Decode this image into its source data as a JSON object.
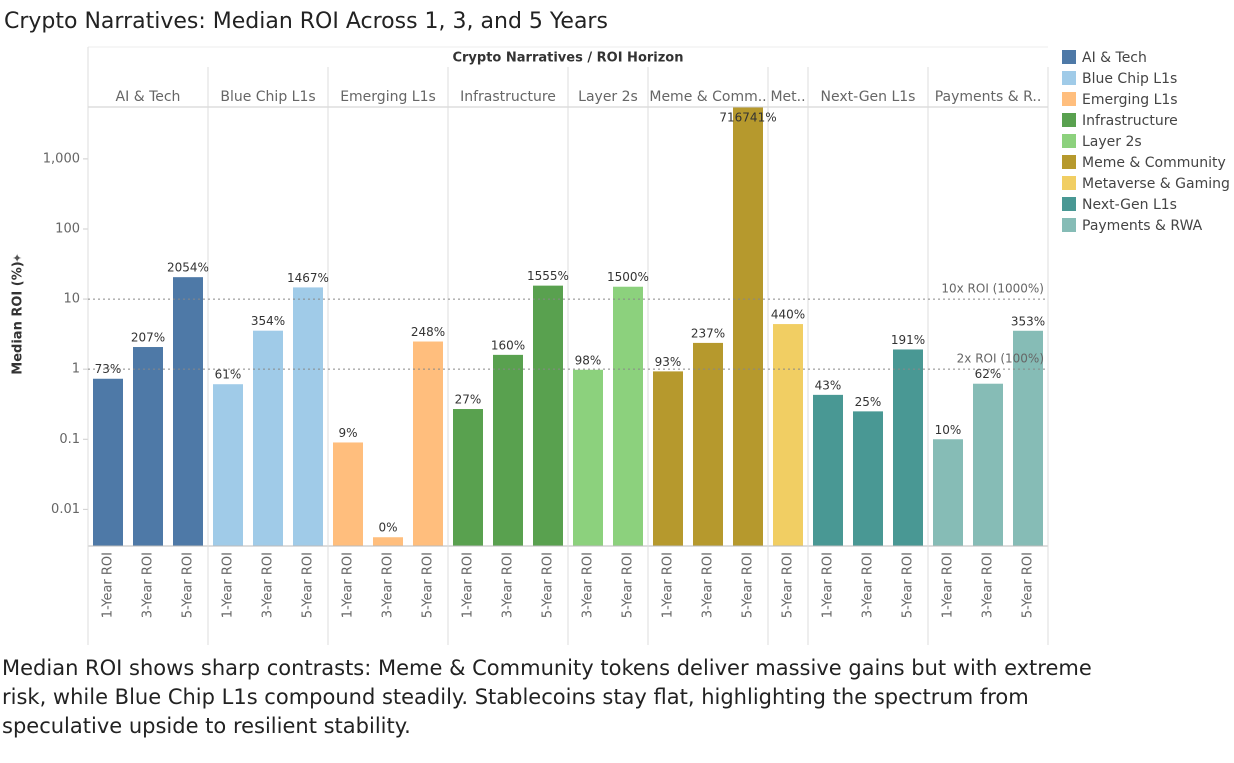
{
  "chart_data": {
    "type": "grouped_bar",
    "title": "Crypto Narratives: Median ROI Across 1, 3, and 5 Years",
    "header": "Crypto Narratives / ROI Horizon",
    "y_label": "Median ROI (%)",
    "log_scale": true,
    "ylim": [
      0.003,
      5500
    ],
    "yticks": [
      0.01,
      0.1,
      1,
      10,
      100,
      {
        "value": 1000,
        "label": "1,000"
      }
    ],
    "reference_lines": [
      {
        "value": 10,
        "label": "10x ROI (1000%)"
      },
      {
        "value": 1,
        "label": "2x ROI (100%)"
      }
    ],
    "groups": [
      {
        "name": "AI & Tech",
        "header": "AI & Tech",
        "color": "#4e79a7",
        "categories": [
          "1-Year ROI",
          "3-Year ROI",
          "5-Year ROI"
        ],
        "values": [
          0.73,
          2.07,
          20.54
        ],
        "value_labels": [
          "73%",
          "207%",
          "2054%"
        ]
      },
      {
        "name": "Blue Chip L1s",
        "header": "Blue Chip L1s",
        "color": "#a0cbe8",
        "categories": [
          "1-Year ROI",
          "3-Year ROI",
          "5-Year ROI"
        ],
        "values": [
          0.61,
          3.54,
          14.67
        ],
        "value_labels": [
          "61%",
          "354%",
          "1467%"
        ]
      },
      {
        "name": "Emerging L1s",
        "header": "Emerging L1s",
        "color": "#ffbe7d",
        "categories": [
          "1-Year ROI",
          "3-Year ROI",
          "5-Year ROI"
        ],
        "values": [
          0.09,
          0.004,
          2.48
        ],
        "value_labels": [
          "9%",
          "0%",
          "248%"
        ]
      },
      {
        "name": "Infrastructure",
        "header": "Infrastructure",
        "color": "#59a14f",
        "categories": [
          "1-Year ROI",
          "3-Year ROI",
          "5-Year ROI"
        ],
        "values": [
          0.27,
          1.6,
          15.55
        ],
        "value_labels": [
          "27%",
          "160%",
          "1555%"
        ]
      },
      {
        "name": "Layer 2s",
        "header": "Layer 2s",
        "color": "#8cd17d",
        "categories": [
          "3-Year ROI",
          "5-Year ROI"
        ],
        "values": [
          0.98,
          15.0
        ],
        "value_labels": [
          "98%",
          "1500%"
        ]
      },
      {
        "name": "Meme & Community",
        "header": "Meme & Comm..",
        "color": "#b6992d",
        "categories": [
          "1-Year ROI",
          "3-Year ROI",
          "5-Year ROI"
        ],
        "values": [
          0.93,
          2.37,
          7167.41
        ],
        "value_labels": [
          "93%",
          "237%",
          "716741%"
        ]
      },
      {
        "name": "Metaverse & Gaming",
        "header": "Met..",
        "color": "#f1ce63",
        "categories": [
          "5-Year ROI"
        ],
        "values": [
          4.4
        ],
        "value_labels": [
          "440%"
        ]
      },
      {
        "name": "Next-Gen L1s",
        "header": "Next-Gen L1s",
        "color": "#499894",
        "categories": [
          "1-Year ROI",
          "3-Year ROI",
          "5-Year ROI"
        ],
        "values": [
          0.43,
          0.25,
          1.91
        ],
        "value_labels": [
          "43%",
          "25%",
          "191%"
        ]
      },
      {
        "name": "Payments & RWA",
        "header": "Payments & R..",
        "color": "#86bcb6",
        "categories": [
          "1-Year ROI",
          "3-Year ROI",
          "5-Year ROI"
        ],
        "values": [
          0.1,
          0.62,
          3.53
        ],
        "value_labels": [
          "10%",
          "62%",
          "353%"
        ]
      }
    ],
    "caption": "Median ROI shows sharp contrasts: Meme & Community tokens deliver massive gains but with extreme risk, while Blue Chip L1s compound steadily. Stablecoins stay flat, highlighting the spectrum from speculative upside to resilient stability."
  }
}
